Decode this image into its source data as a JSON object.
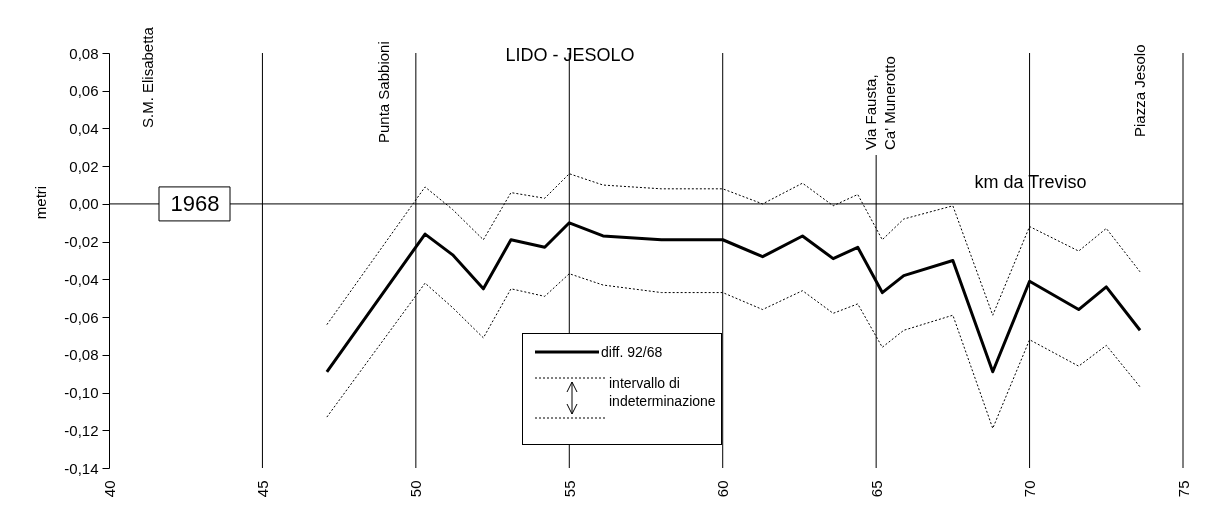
{
  "chart_data": {
    "type": "line",
    "title": "LIDO - JESOLO",
    "xlabel": "km da Treviso",
    "ylabel": "metri",
    "x": [
      47.1,
      50.3,
      51.2,
      52.2,
      53.1,
      54.2,
      55.0,
      56.1,
      58.0,
      60.0,
      61.3,
      62.6,
      63.6,
      64.4,
      65.2,
      65.9,
      67.5,
      68.8,
      70.0,
      71.6,
      72.5,
      73.6
    ],
    "series": [
      {
        "name": "diff. 92/68",
        "color": "#000000",
        "values": [
          -0.089,
          -0.016,
          -0.027,
          -0.045,
          -0.019,
          -0.023,
          -0.01,
          -0.017,
          -0.019,
          -0.019,
          -0.028,
          -0.017,
          -0.029,
          -0.023,
          -0.047,
          -0.038,
          -0.03,
          -0.089,
          -0.041,
          -0.056,
          -0.044,
          -0.067
        ]
      },
      {
        "color": "#000000",
        "line_style": "dotted",
        "values": [
          -0.064,
          0.009,
          -0.003,
          -0.019,
          0.006,
          0.003,
          0.016,
          0.01,
          0.008,
          0.008,
          0.0,
          0.011,
          -0.001,
          0.005,
          -0.019,
          -0.008,
          -0.001,
          -0.059,
          -0.012,
          -0.025,
          -0.013,
          -0.036
        ]
      },
      {
        "color": "#000000",
        "line_style": "dotted",
        "values": [
          -0.113,
          -0.042,
          -0.055,
          -0.071,
          -0.045,
          -0.049,
          -0.037,
          -0.043,
          -0.047,
          -0.047,
          -0.056,
          -0.046,
          -0.058,
          -0.053,
          -0.076,
          -0.067,
          -0.059,
          -0.119,
          -0.072,
          -0.086,
          -0.075,
          -0.097
        ]
      }
    ],
    "xlim": [
      40,
      75
    ],
    "xticks": [
      40,
      45,
      50,
      55,
      60,
      65,
      70,
      75
    ],
    "ylim": [
      -0.14,
      0.08
    ],
    "yticks": [
      {
        "value": -0.14,
        "label": "-0,14"
      },
      {
        "value": -0.12,
        "label": "-0,12"
      },
      {
        "value": -0.1,
        "label": "-0,10"
      },
      {
        "value": -0.08,
        "label": "-0,08"
      },
      {
        "value": -0.06,
        "label": "-0,06"
      },
      {
        "value": -0.04,
        "label": "-0,04"
      },
      {
        "value": -0.02,
        "label": "-0,02"
      },
      {
        "value": 0,
        "label": "0,00"
      },
      {
        "value": 0.02,
        "label": "0,02"
      },
      {
        "value": 0.04,
        "label": "0,04"
      },
      {
        "value": 0.06,
        "label": "0,06"
      },
      {
        "value": 0.08,
        "label": "0,08"
      }
    ],
    "ref_lines": [
      {
        "axis": "y",
        "value": 0
      }
    ],
    "annotations": [
      "1968",
      "S.M. Elisabetta",
      "Punta Sabbioni",
      "Via Fausta,\nCa' Munerotto",
      "Piazza Jesolo",
      "intervallo di indeterminazione"
    ],
    "grid": "x",
    "legend": "bottom",
    "marker": "none",
    "line_style": "solid"
  }
}
